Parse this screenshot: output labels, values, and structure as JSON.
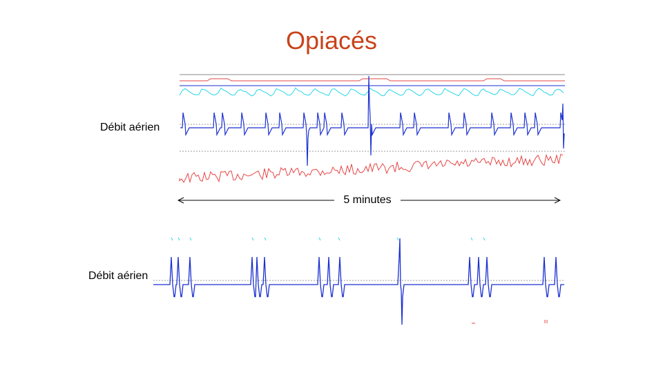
{
  "title": "Opiacés",
  "top_panel": {
    "channel_label": "Débit aérien",
    "duration_label": "5 minutes"
  },
  "bottom_panel": {
    "channel_label": "Débit aérien"
  },
  "colors": {
    "title": "#c8431b",
    "airflow": "#1a2fd0",
    "cyan_trace": "#27d6e6",
    "red_trace": "#e64545",
    "reference_line": "#999999"
  }
}
